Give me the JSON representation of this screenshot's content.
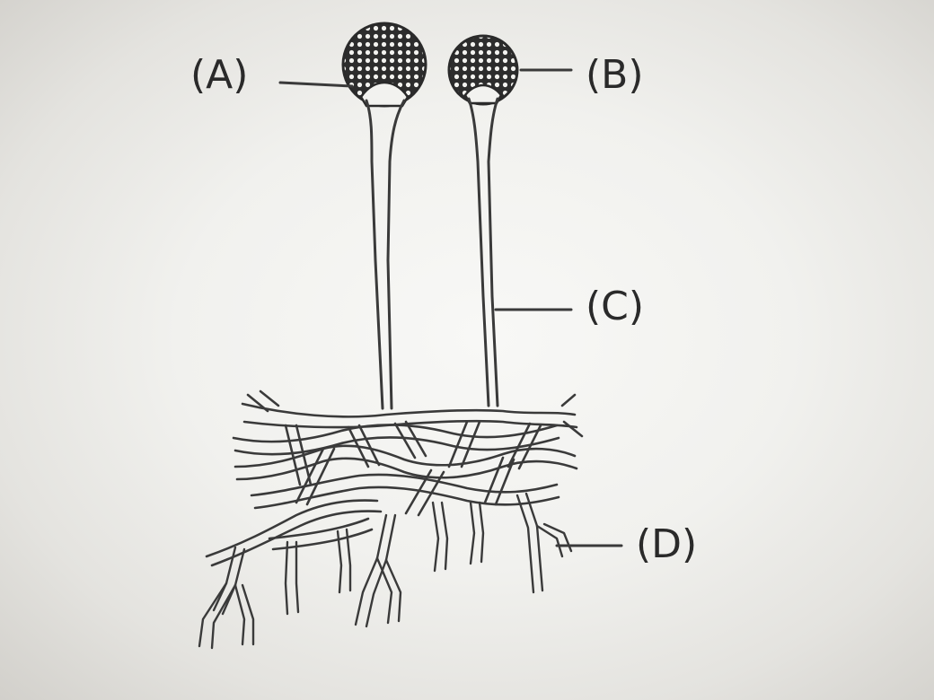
{
  "labels": {
    "a": "(A)",
    "b": "(B)",
    "c": "(C)",
    "d": "(D)"
  },
  "colors": {
    "ink": "#3a3a3a",
    "paper": "#f4f4f2"
  }
}
